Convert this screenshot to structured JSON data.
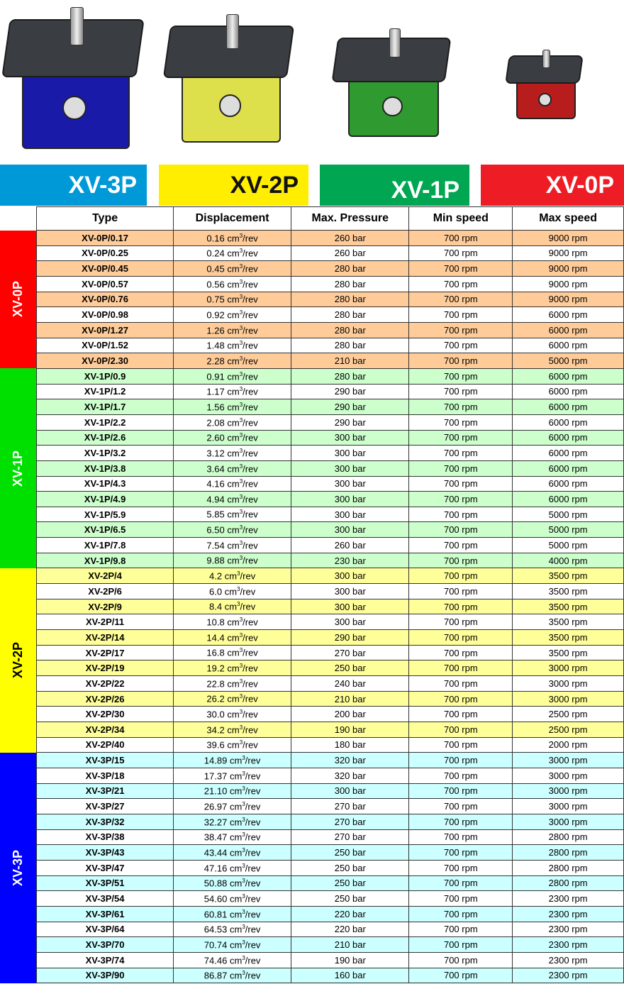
{
  "banners": [
    {
      "label": "XV-3P",
      "bg": "#0099d8",
      "fg": "#ffffff"
    },
    {
      "label": "XV-2P",
      "bg": "#ffee00",
      "fg": "#111111"
    },
    {
      "label": "XV-1P",
      "bg": "#00a651",
      "fg": "#ffffff"
    },
    {
      "label": "XV-0P",
      "bg": "#ee1c25",
      "fg": "#ffffff"
    }
  ],
  "pump_colors": [
    "#1a1aa8",
    "#dde04a",
    "#2f9a2f",
    "#b81d1d"
  ],
  "headers": [
    "Type",
    "Displacement",
    "Max. Pressure",
    "Min speed",
    "Max speed"
  ],
  "units": {
    "cm": "cm",
    "exp": "3",
    "rev": "/rev"
  },
  "groups": [
    {
      "label": "XV-0P",
      "side_color": "#ff0000",
      "row_color": "#ffcc99",
      "rows": [
        [
          "XV-0P/0.17",
          "0.16",
          "260 bar",
          "700 rpm",
          "9000 rpm"
        ],
        [
          "XV-0P/0.25",
          "0.24",
          "260 bar",
          "700 rpm",
          "9000 rpm"
        ],
        [
          "XV-0P/0.45",
          "0.45",
          "280 bar",
          "700 rpm",
          "9000 rpm"
        ],
        [
          "XV-0P/0.57",
          "0.56",
          "280 bar",
          "700 rpm",
          "9000 rpm"
        ],
        [
          "XV-0P/0.76",
          "0.75",
          "280 bar",
          "700 rpm",
          "9000 rpm"
        ],
        [
          "XV-0P/0.98",
          "0.92",
          "280 bar",
          "700 rpm",
          "6000 rpm"
        ],
        [
          "XV-0P/1.27",
          "1.26",
          "280 bar",
          "700 rpm",
          "6000 rpm"
        ],
        [
          "XV-0P/1.52",
          "1.48",
          "280 bar",
          "700 rpm",
          "6000 rpm"
        ],
        [
          "XV-0P/2.30",
          "2.28",
          "210 bar",
          "700 rpm",
          "5000 rpm"
        ]
      ]
    },
    {
      "label": "XV-1P",
      "side_color": "#00e000",
      "row_color": "#ccffcc",
      "rows": [
        [
          "XV-1P/0.9",
          "0.91",
          "280 bar",
          "700 rpm",
          "6000 rpm"
        ],
        [
          "XV-1P/1.2",
          "1.17",
          "290 bar",
          "700 rpm",
          "6000 rpm"
        ],
        [
          "XV-1P/1.7",
          "1.56",
          "290 bar",
          "700 rpm",
          "6000 rpm"
        ],
        [
          "XV-1P/2.2",
          "2.08",
          "290 bar",
          "700 rpm",
          "6000 rpm"
        ],
        [
          "XV-1P/2.6",
          "2.60",
          "300 bar",
          "700 rpm",
          "6000 rpm"
        ],
        [
          "XV-1P/3.2",
          "3.12",
          "300 bar",
          "700 rpm",
          "6000 rpm"
        ],
        [
          "XV-1P/3.8",
          "3.64",
          "300 bar",
          "700 rpm",
          "6000 rpm"
        ],
        [
          "XV-1P/4.3",
          "4.16",
          "300 bar",
          "700 rpm",
          "6000 rpm"
        ],
        [
          "XV-1P/4.9",
          "4.94",
          "300 bar",
          "700 rpm",
          "6000 rpm"
        ],
        [
          "XV-1P/5.9",
          "5.85",
          "300 bar",
          "700 rpm",
          "5000 rpm"
        ],
        [
          "XV-1P/6.5",
          "6.50",
          "300 bar",
          "700 rpm",
          "5000 rpm"
        ],
        [
          "XV-1P/7.8",
          "7.54",
          "260 bar",
          "700 rpm",
          "5000 rpm"
        ],
        [
          "XV-1P/9.8",
          "9.88",
          "230 bar",
          "700 rpm",
          "4000 rpm"
        ]
      ]
    },
    {
      "label": "XV-2P",
      "side_color": "#ffff00",
      "side_text": "#000000",
      "row_color": "#ffff99",
      "rows": [
        [
          "XV-2P/4",
          "4.2",
          "300 bar",
          "700 rpm",
          "3500 rpm"
        ],
        [
          "XV-2P/6",
          "6.0",
          "300 bar",
          "700 rpm",
          "3500 rpm"
        ],
        [
          "XV-2P/9",
          "8.4",
          "300 bar",
          "700 rpm",
          "3500 rpm"
        ],
        [
          "XV-2P/11",
          "10.8",
          "300 bar",
          "700 rpm",
          "3500 rpm"
        ],
        [
          "XV-2P/14",
          "14.4",
          "290 bar",
          "700 rpm",
          "3500 rpm"
        ],
        [
          "XV-2P/17",
          "16.8",
          "270 bar",
          "700 rpm",
          "3500 rpm"
        ],
        [
          "XV-2P/19",
          "19.2",
          "250 bar",
          "700 rpm",
          "3000 rpm"
        ],
        [
          "XV-2P/22",
          "22.8",
          "240 bar",
          "700 rpm",
          "3000 rpm"
        ],
        [
          "XV-2P/26",
          "26.2",
          "210 bar",
          "700 rpm",
          "3000 rpm"
        ],
        [
          "XV-2P/30",
          "30.0",
          "200 bar",
          "700 rpm",
          "2500 rpm"
        ],
        [
          "XV-2P/34",
          "34.2",
          "190 bar",
          "700 rpm",
          "2500 rpm"
        ],
        [
          "XV-2P/40",
          "39.6",
          "180 bar",
          "700 rpm",
          "2000 rpm"
        ]
      ]
    },
    {
      "label": "XV-3P",
      "side_color": "#0000ff",
      "row_color": "#ccffff",
      "rows": [
        [
          "XV-3P/15",
          "14.89",
          "320 bar",
          "700 rpm",
          "3000 rpm"
        ],
        [
          "XV-3P/18",
          "17.37",
          "320 bar",
          "700 rpm",
          "3000 rpm"
        ],
        [
          "XV-3P/21",
          "21.10",
          "300 bar",
          "700 rpm",
          "3000 rpm"
        ],
        [
          "XV-3P/27",
          "26.97",
          "270 bar",
          "700 rpm",
          "3000 rpm"
        ],
        [
          "XV-3P/32",
          "32.27",
          "270 bar",
          "700 rpm",
          "3000 rpm"
        ],
        [
          "XV-3P/38",
          "38.47",
          "270 bar",
          "700 rpm",
          "2800 rpm"
        ],
        [
          "XV-3P/43",
          "43.44",
          "250 bar",
          "700 rpm",
          "2800 rpm"
        ],
        [
          "XV-3P/47",
          "47.16",
          "250 bar",
          "700 rpm",
          "2800 rpm"
        ],
        [
          "XV-3P/51",
          "50.88",
          "250 bar",
          "700 rpm",
          "2800 rpm"
        ],
        [
          "XV-3P/54",
          "54.60",
          "250 bar",
          "700 rpm",
          "2300 rpm"
        ],
        [
          "XV-3P/61",
          "60.81",
          "220 bar",
          "700 rpm",
          "2300 rpm"
        ],
        [
          "XV-3P/64",
          "64.53",
          "220 bar",
          "700 rpm",
          "2300 rpm"
        ],
        [
          "XV-3P/70",
          "70.74",
          "210 bar",
          "700 rpm",
          "2300 rpm"
        ],
        [
          "XV-3P/74",
          "74.46",
          "190 bar",
          "700 rpm",
          "2300 rpm"
        ],
        [
          "XV-3P/90",
          "86.87",
          "160 bar",
          "700 rpm",
          "2300 rpm"
        ]
      ]
    }
  ]
}
